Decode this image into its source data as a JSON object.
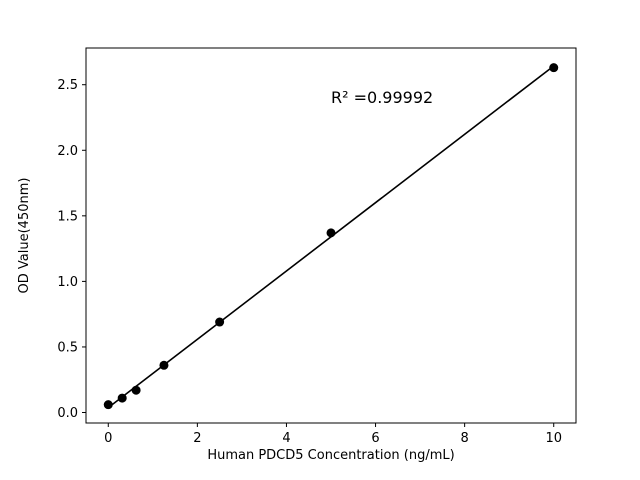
{
  "figure": {
    "background": "#ffffff"
  },
  "chart_data": {
    "type": "scatter",
    "title": "",
    "xlabel": "Human PDCD5 Concentration (ng/mL)",
    "ylabel": "OD Value(450nm)",
    "x": [
      0,
      0.3125,
      0.625,
      1.25,
      2.5,
      5,
      10
    ],
    "y": [
      0.06,
      0.11,
      0.17,
      0.36,
      0.69,
      1.37,
      2.63
    ],
    "fit_line": true,
    "marker_color": "#000000",
    "line_color": "#000000",
    "xlim": [
      -0.5,
      10.5
    ],
    "ylim": [
      -0.08,
      2.78
    ],
    "x_ticks": [
      0,
      2,
      4,
      6,
      8,
      10
    ],
    "y_ticks": [
      0.0,
      0.5,
      1.0,
      1.5,
      2.0,
      2.5
    ],
    "grid": false,
    "legend": null,
    "annotation": {
      "text": "R² =0.99992",
      "x": 5.0,
      "y": 2.36
    }
  }
}
